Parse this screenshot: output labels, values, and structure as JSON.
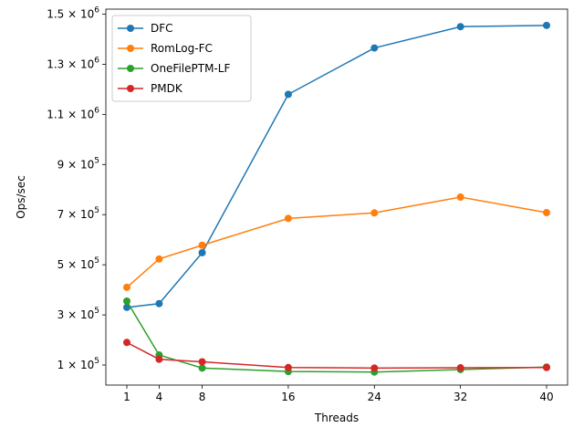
{
  "chart_data": {
    "type": "line",
    "xlabel": "Threads",
    "ylabel": "Ops/sec",
    "x": [
      1,
      4,
      8,
      16,
      24,
      32,
      40
    ],
    "xticks": [
      "1",
      "4",
      "8",
      "16",
      "24",
      "32",
      "40"
    ],
    "xlim": [
      -0.95,
      41.95
    ],
    "ylim": [
      20000,
      1520000
    ],
    "yticks": [
      {
        "value": 100000,
        "mantissa": "1",
        "exponent": "5"
      },
      {
        "value": 300000,
        "mantissa": "3",
        "exponent": "5"
      },
      {
        "value": 500000,
        "mantissa": "5",
        "exponent": "5"
      },
      {
        "value": 700000,
        "mantissa": "7",
        "exponent": "5"
      },
      {
        "value": 900000,
        "mantissa": "9",
        "exponent": "5"
      },
      {
        "value": 1100000,
        "mantissa": "1.1",
        "exponent": "6"
      },
      {
        "value": 1300000,
        "mantissa": "1.3",
        "exponent": "6"
      },
      {
        "value": 1500000,
        "mantissa": "1.5",
        "exponent": "6"
      }
    ],
    "grid": false,
    "legend_position": "top-left",
    "series": [
      {
        "name": "DFC",
        "color": "#1f77b4",
        "values": [
          330000,
          345000,
          548000,
          1180000,
          1365000,
          1450000,
          1455000
        ]
      },
      {
        "name": "RomLog-FC",
        "color": "#ff7f0e",
        "values": [
          410000,
          523000,
          578000,
          685000,
          707000,
          770000,
          708000
        ]
      },
      {
        "name": "OneFilePTM-LF",
        "color": "#2ca02c",
        "values": [
          355000,
          140000,
          88000,
          74000,
          72000,
          82000,
          92000
        ]
      },
      {
        "name": "PMDK",
        "color": "#d62728",
        "values": [
          190000,
          123000,
          113000,
          90000,
          88000,
          89000,
          90000
        ]
      }
    ]
  }
}
